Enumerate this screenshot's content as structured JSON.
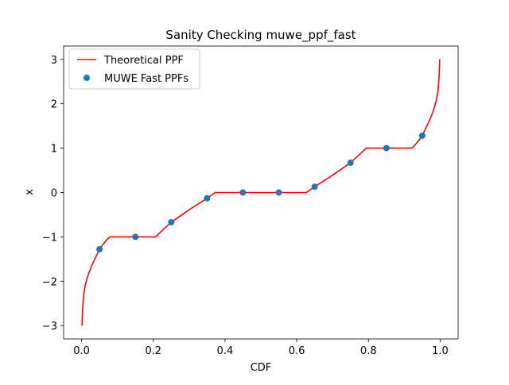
{
  "chart_data": {
    "type": "line+scatter",
    "title": "Sanity Checking muwe_ppf_fast",
    "xlabel": "CDF",
    "ylabel": "x",
    "xlim": [
      -0.05,
      1.05
    ],
    "ylim": [
      -3.3,
      3.3
    ],
    "xticks": [
      0.0,
      0.2,
      0.4,
      0.6,
      0.8,
      1.0
    ],
    "xtick_labels": [
      "0.0",
      "0.2",
      "0.4",
      "0.6",
      "0.8",
      "1.0"
    ],
    "yticks": [
      -3,
      -2,
      -1,
      0,
      1,
      2,
      3
    ],
    "ytick_labels": [
      "−3",
      "−2",
      "−1",
      "0",
      "1",
      "2",
      "3"
    ],
    "grid": false,
    "legend_position": "upper-left",
    "series": [
      {
        "name": "Theoretical PPF",
        "kind": "line",
        "color": "#ff0000",
        "points": [
          [
            0.0013,
            -3.0
          ],
          [
            0.003,
            -2.6
          ],
          [
            0.006,
            -2.3
          ],
          [
            0.01,
            -2.1
          ],
          [
            0.015,
            -1.95
          ],
          [
            0.02,
            -1.82
          ],
          [
            0.03,
            -1.62
          ],
          [
            0.04,
            -1.45
          ],
          [
            0.05,
            -1.28
          ],
          [
            0.06,
            -1.17
          ],
          [
            0.07,
            -1.07
          ],
          [
            0.079,
            -1.0
          ],
          [
            0.206,
            -1.0
          ],
          [
            0.25,
            -0.67
          ],
          [
            0.3,
            -0.39
          ],
          [
            0.35,
            -0.13
          ],
          [
            0.373,
            0.0
          ],
          [
            0.627,
            0.0
          ],
          [
            0.65,
            0.13
          ],
          [
            0.7,
            0.39
          ],
          [
            0.75,
            0.67
          ],
          [
            0.794,
            1.0
          ],
          [
            0.921,
            1.0
          ],
          [
            0.93,
            1.07
          ],
          [
            0.94,
            1.17
          ],
          [
            0.95,
            1.28
          ],
          [
            0.96,
            1.45
          ],
          [
            0.97,
            1.62
          ],
          [
            0.98,
            1.82
          ],
          [
            0.985,
            1.95
          ],
          [
            0.99,
            2.1
          ],
          [
            0.994,
            2.3
          ],
          [
            0.997,
            2.6
          ],
          [
            0.9987,
            3.0
          ]
        ]
      },
      {
        "name": "MUWE Fast PPFs",
        "kind": "scatter",
        "color": "#1f77b4",
        "x": [
          0.05,
          0.15,
          0.25,
          0.35,
          0.45,
          0.55,
          0.65,
          0.75,
          0.85,
          0.95
        ],
        "y": [
          -1.28,
          -1.0,
          -0.67,
          -0.13,
          0.0,
          0.0,
          0.13,
          0.67,
          1.0,
          1.28
        ]
      }
    ]
  }
}
